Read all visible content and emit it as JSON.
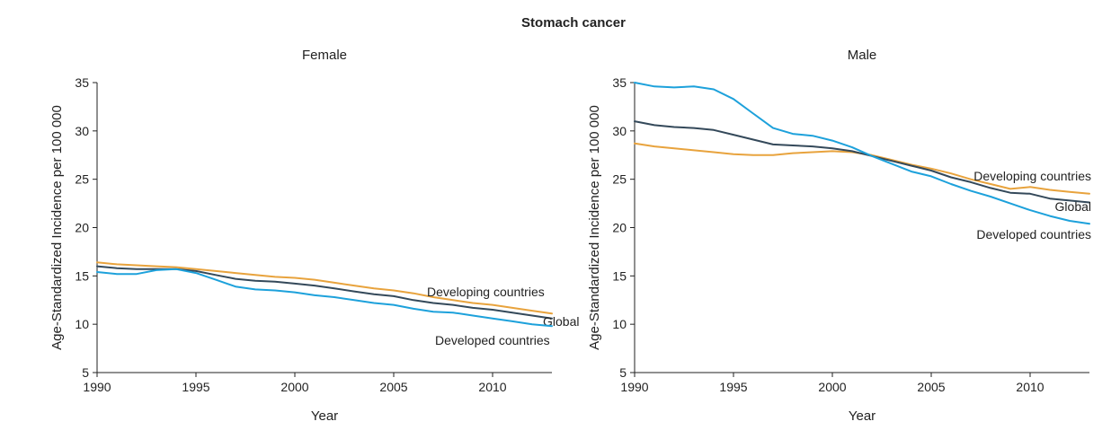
{
  "figure": {
    "title": "Stomach cancer"
  },
  "colors": {
    "developing": "#E8A33D",
    "global": "#34495A",
    "developed": "#1DA1DB"
  },
  "chart_data": [
    {
      "type": "line",
      "title": "Female",
      "xlabel": "Year",
      "ylabel": "Age-Standardized Incidence per 100 000",
      "xlim": [
        1990,
        2013
      ],
      "ylim": [
        5,
        35
      ],
      "xticks": [
        1990,
        1995,
        2000,
        2005,
        2010
      ],
      "yticks": [
        5,
        10,
        15,
        20,
        25,
        30,
        35
      ],
      "x": [
        1990,
        1991,
        1992,
        1993,
        1994,
        1995,
        1996,
        1997,
        1998,
        1999,
        2000,
        2001,
        2002,
        2003,
        2004,
        2005,
        2006,
        2007,
        2008,
        2009,
        2010,
        2011,
        2012,
        2013
      ],
      "series": [
        {
          "name": "Developing countries",
          "color_key": "developing",
          "values": [
            16.4,
            16.2,
            16.1,
            16.0,
            15.9,
            15.7,
            15.5,
            15.3,
            15.1,
            14.9,
            14.8,
            14.6,
            14.3,
            14.0,
            13.7,
            13.5,
            13.2,
            12.8,
            12.5,
            12.2,
            12.0,
            11.7,
            11.4,
            11.1
          ]
        },
        {
          "name": "Global",
          "color_key": "global",
          "values": [
            16.0,
            15.8,
            15.7,
            15.7,
            15.7,
            15.5,
            15.1,
            14.7,
            14.5,
            14.4,
            14.2,
            14.0,
            13.7,
            13.4,
            13.1,
            12.9,
            12.5,
            12.2,
            12.0,
            11.7,
            11.5,
            11.2,
            10.9,
            10.6
          ]
        },
        {
          "name": "Developed countries",
          "color_key": "developed",
          "values": [
            15.4,
            15.2,
            15.2,
            15.6,
            15.7,
            15.3,
            14.6,
            13.9,
            13.6,
            13.5,
            13.3,
            13.0,
            12.8,
            12.5,
            12.2,
            12.0,
            11.6,
            11.3,
            11.2,
            10.9,
            10.6,
            10.3,
            10.0,
            9.8
          ]
        }
      ]
    },
    {
      "type": "line",
      "title": "Male",
      "xlabel": "Year",
      "ylabel": "Age-Standardized Incidence per 100 000",
      "xlim": [
        1990,
        2013
      ],
      "ylim": [
        5,
        35
      ],
      "xticks": [
        1990,
        1995,
        2000,
        2005,
        2010
      ],
      "yticks": [
        5,
        10,
        15,
        20,
        25,
        30,
        35
      ],
      "x": [
        1990,
        1991,
        1992,
        1993,
        1994,
        1995,
        1996,
        1997,
        1998,
        1999,
        2000,
        2001,
        2002,
        2003,
        2004,
        2005,
        2006,
        2007,
        2008,
        2009,
        2010,
        2011,
        2012,
        2013
      ],
      "series": [
        {
          "name": "Developing countries",
          "color_key": "developing",
          "values": [
            28.7,
            28.4,
            28.2,
            28.0,
            27.8,
            27.6,
            27.5,
            27.5,
            27.7,
            27.8,
            27.9,
            27.8,
            27.5,
            27.0,
            26.5,
            26.1,
            25.6,
            25.0,
            24.5,
            24.0,
            24.2,
            23.9,
            23.7,
            23.5
          ]
        },
        {
          "name": "Global",
          "color_key": "global",
          "values": [
            31.0,
            30.6,
            30.4,
            30.3,
            30.1,
            29.6,
            29.1,
            28.6,
            28.5,
            28.4,
            28.2,
            27.9,
            27.4,
            26.9,
            26.4,
            25.9,
            25.2,
            24.7,
            24.1,
            23.6,
            23.5,
            23.0,
            22.8,
            22.6
          ]
        },
        {
          "name": "Developed countries",
          "color_key": "developed",
          "values": [
            35.0,
            34.6,
            34.5,
            34.6,
            34.3,
            33.3,
            31.8,
            30.3,
            29.7,
            29.5,
            29.0,
            28.3,
            27.4,
            26.6,
            25.8,
            25.3,
            24.5,
            23.8,
            23.2,
            22.5,
            21.8,
            21.2,
            20.7,
            20.4
          ]
        }
      ]
    }
  ]
}
